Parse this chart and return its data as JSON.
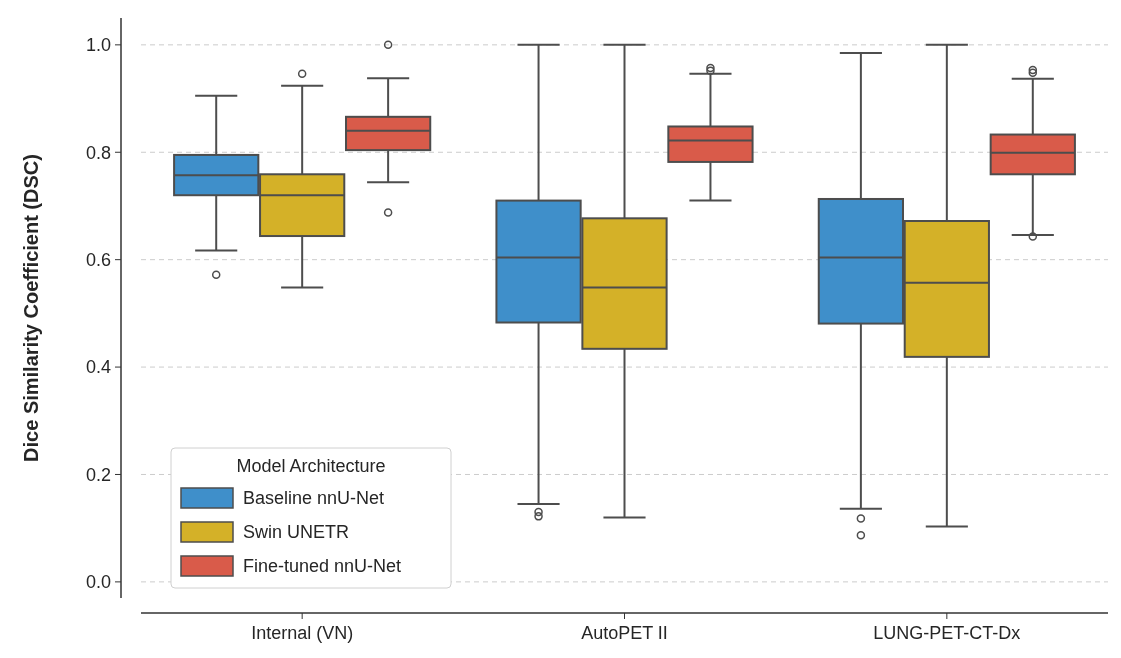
{
  "chart_data": {
    "type": "box",
    "ylabel": "Dice Similarity Coefficient (DSC)",
    "legend_title": "Model Architecture",
    "categories": [
      "Internal (VN)",
      "AutoPET II",
      "LUNG-PET-CT-Dx"
    ],
    "ylim": [
      -0.03,
      1.05
    ],
    "yticks": [
      {
        "value": 0,
        "label": "0.0"
      },
      0.2,
      0.4,
      0.6,
      0.8,
      {
        "value": 1,
        "label": "1.0"
      }
    ],
    "grid": "y",
    "legend": "bottom left",
    "series": [
      {
        "name": "Baseline nnU-Net",
        "color": "#3f8fca",
        "boxes": [
          {
            "low": 0.617,
            "q1": 0.72,
            "median": 0.757,
            "q3": 0.795,
            "high": 0.905,
            "outliers": [
              0.572
            ]
          },
          {
            "low": 0.145,
            "q1": 0.483,
            "median": 0.604,
            "q3": 0.71,
            "high": 1.0,
            "outliers": [
              0.13,
              0.122
            ]
          },
          {
            "low": 0.136,
            "q1": 0.481,
            "median": 0.604,
            "q3": 0.713,
            "high": 0.985,
            "outliers": [
              0.118,
              0.087
            ]
          }
        ]
      },
      {
        "name": "Swin UNETR",
        "color": "#d4b128",
        "boxes": [
          {
            "low": 0.548,
            "q1": 0.644,
            "median": 0.72,
            "q3": 0.759,
            "high": 0.924,
            "outliers": [
              0.946
            ]
          },
          {
            "low": 0.12,
            "q1": 0.434,
            "median": 0.548,
            "q3": 0.677,
            "high": 1.0
          },
          {
            "low": 0.103,
            "q1": 0.419,
            "median": 0.557,
            "q3": 0.672,
            "high": 1.0
          }
        ]
      },
      {
        "name": "Fine-tuned nnU-Net",
        "color": "#d95b4a",
        "boxes": [
          {
            "low": 0.744,
            "q1": 0.804,
            "median": 0.84,
            "q3": 0.866,
            "high": 0.938,
            "outliers": [
              1.0,
              0.688
            ]
          },
          {
            "low": 0.71,
            "q1": 0.782,
            "median": 0.822,
            "q3": 0.848,
            "high": 0.946,
            "outliers": [
              0.957,
              0.952
            ]
          },
          {
            "low": 0.646,
            "q1": 0.759,
            "median": 0.799,
            "q3": 0.833,
            "high": 0.937,
            "outliers": [
              0.953,
              0.948,
              0.643
            ]
          }
        ]
      }
    ]
  }
}
